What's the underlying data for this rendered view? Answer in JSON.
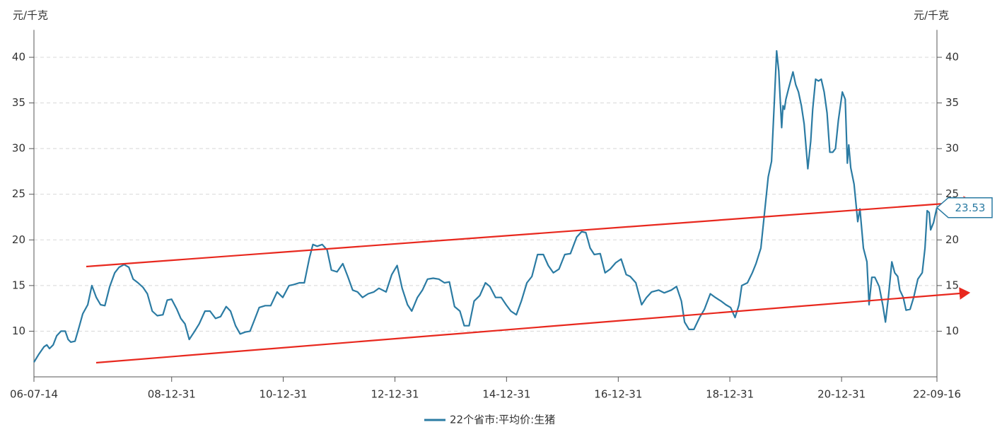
{
  "chart_data": {
    "type": "line",
    "y_label": "元/千克",
    "y2_label": "元/千克",
    "x": [
      "06-07-14",
      "06-08-16",
      "06-09-18",
      "06-10-06",
      "06-10-24",
      "06-11-17",
      "06-12-10",
      "07-01-07",
      "07-02-04",
      "07-02-23",
      "07-03-12",
      "07-04-09",
      "07-05-06",
      "07-05-29",
      "07-07-01",
      "07-07-28",
      "07-08-26",
      "07-09-23",
      "07-10-21",
      "07-11-22",
      "07-12-25",
      "08-01-22",
      "08-02-24",
      "08-03-26",
      "08-04-23",
      "08-05-25",
      "08-06-27",
      "08-07-25",
      "08-08-26",
      "08-09-28",
      "08-11-04",
      "08-12-02",
      "08-12-31",
      "09-02-03",
      "09-03-01",
      "09-03-28",
      "09-04-25",
      "09-05-27",
      "09-06-29",
      "09-08-06",
      "09-09-08",
      "09-10-14",
      "09-11-16",
      "09-12-23",
      "10-01-20",
      "10-02-22",
      "10-03-24",
      "10-04-26",
      "10-05-28",
      "10-06-25",
      "10-07-27",
      "10-09-04",
      "10-10-10",
      "10-11-21",
      "10-12-28",
      "11-02-07",
      "11-03-09",
      "11-04-16",
      "11-05-18",
      "11-06-20",
      "11-07-13",
      "11-08-10",
      "11-09-12",
      "11-10-14",
      "11-11-11",
      "11-12-18",
      "12-01-25",
      "12-02-26",
      "12-03-29",
      "12-04-30",
      "12-06-02",
      "12-07-09",
      "12-08-15",
      "12-09-17",
      "12-11-03",
      "12-12-10",
      "13-01-14",
      "13-02-16",
      "13-03-23",
      "13-04-20",
      "13-05-27",
      "13-06-29",
      "13-08-01",
      "13-09-07",
      "13-10-14",
      "13-11-20",
      "13-12-22",
      "14-01-25",
      "14-03-01",
      "14-03-29",
      "14-04-30",
      "14-06-02",
      "14-07-09",
      "14-08-15",
      "14-09-13",
      "14-10-20",
      "14-11-26",
      "14-12-28",
      "15-01-28",
      "15-03-05",
      "15-04-07",
      "15-05-13",
      "15-06-15",
      "15-07-22",
      "15-08-29",
      "15-09-30",
      "15-11-02",
      "15-12-09",
      "16-01-16",
      "16-02-22",
      "16-04-03",
      "16-05-05",
      "16-06-02",
      "16-06-30",
      "16-07-27",
      "16-09-04",
      "16-10-06",
      "16-11-08",
      "16-12-14",
      "17-01-19",
      "17-02-21",
      "17-03-19",
      "17-04-25",
      "17-06-02",
      "17-07-04",
      "17-08-06",
      "17-09-21",
      "17-10-28",
      "17-12-13",
      "18-01-16",
      "18-02-17",
      "18-03-10",
      "18-04-08",
      "18-05-10",
      "18-06-16",
      "18-07-18",
      "18-08-25",
      "18-09-27",
      "18-11-03",
      "18-12-05",
      "19-01-05",
      "19-02-03",
      "19-03-01",
      "19-03-19",
      "19-04-25",
      "19-05-27",
      "19-06-20",
      "19-07-22",
      "19-08-15",
      "19-09-08",
      "19-09-30",
      "19-10-19",
      "19-11-02",
      "19-11-16",
      "19-12-05",
      "19-12-14",
      "19-12-23",
      "20-01-02",
      "20-01-20",
      "20-02-17",
      "20-03-06",
      "20-03-24",
      "20-04-12",
      "20-04-30",
      "20-05-24",
      "20-06-12",
      "20-06-25",
      "20-07-14",
      "20-08-02",
      "20-08-20",
      "20-09-08",
      "20-09-27",
      "20-10-15",
      "20-11-03",
      "20-11-21",
      "20-12-10",
      "21-01-05",
      "21-01-24",
      "21-02-07",
      "21-02-16",
      "21-03-01",
      "21-03-23",
      "21-04-16",
      "21-04-30",
      "21-05-23",
      "21-06-15",
      "21-06-29",
      "21-07-17",
      "21-08-06",
      "21-09-03",
      "21-09-26",
      "21-10-14",
      "21-11-02",
      "21-11-25",
      "21-12-14",
      "22-01-02",
      "22-01-16",
      "22-02-08",
      "22-02-26",
      "22-03-24",
      "22-04-17",
      "22-05-14",
      "22-06-12",
      "22-06-30",
      "22-07-14",
      "22-07-27",
      "22-08-06",
      "22-08-25",
      "22-09-08",
      "22-09-16"
    ],
    "series": [
      {
        "name": "22个省市:平均价:生猪",
        "color": "#2b7ba3",
        "values": [
          6.6,
          7.5,
          8.3,
          8.5,
          8.1,
          8.5,
          9.5,
          10.0,
          10.0,
          9.1,
          8.8,
          8.9,
          10.5,
          11.9,
          12.9,
          15.0,
          13.7,
          12.9,
          12.8,
          14.9,
          16.4,
          17.0,
          17.3,
          17.0,
          15.7,
          15.3,
          14.8,
          14.1,
          12.2,
          11.7,
          11.8,
          13.4,
          13.5,
          12.4,
          11.4,
          10.8,
          9.1,
          9.9,
          10.8,
          12.2,
          12.2,
          11.4,
          11.6,
          12.7,
          12.2,
          10.6,
          9.7,
          9.9,
          10.0,
          11.2,
          12.6,
          12.8,
          12.8,
          14.3,
          13.7,
          15.0,
          15.1,
          15.3,
          15.3,
          18.0,
          19.5,
          19.3,
          19.5,
          18.9,
          16.7,
          16.5,
          17.4,
          16.0,
          14.5,
          14.3,
          13.7,
          14.1,
          14.3,
          14.7,
          14.3,
          16.2,
          17.2,
          14.7,
          12.9,
          12.2,
          13.7,
          14.5,
          15.7,
          15.8,
          15.7,
          15.3,
          15.4,
          12.7,
          12.2,
          10.6,
          10.6,
          13.3,
          13.9,
          15.3,
          14.9,
          13.7,
          13.7,
          12.9,
          12.2,
          11.8,
          13.3,
          15.3,
          16.0,
          18.4,
          18.4,
          17.2,
          16.4,
          16.8,
          18.4,
          18.5,
          20.3,
          20.9,
          20.8,
          19.1,
          18.4,
          18.5,
          16.4,
          16.8,
          17.5,
          17.9,
          16.2,
          16.0,
          15.3,
          12.9,
          13.7,
          14.3,
          14.5,
          14.2,
          14.5,
          14.9,
          13.3,
          11.0,
          10.2,
          10.2,
          11.5,
          12.4,
          14.1,
          13.7,
          13.3,
          12.9,
          12.6,
          11.5,
          12.9,
          15.0,
          15.3,
          16.4,
          17.4,
          19.1,
          23.0,
          26.9,
          28.6,
          35.4,
          40.7,
          38.5,
          32.3,
          34.7,
          34.3,
          35.4,
          36.6,
          38.4,
          37.0,
          36.2,
          34.7,
          32.7,
          27.8,
          30.8,
          34.3,
          37.6,
          37.4,
          37.6,
          36.2,
          33.9,
          29.6,
          29.6,
          30.0,
          33.1,
          36.2,
          35.4,
          28.4,
          30.4,
          27.9,
          26.1,
          22.0,
          23.4,
          19.1,
          17.6,
          12.9,
          15.9,
          15.9,
          14.9,
          12.9,
          11.0,
          13.7,
          17.6,
          16.4,
          16.0,
          14.5,
          13.7,
          12.3,
          12.4,
          13.7,
          15.7,
          16.4,
          19.1,
          23.2,
          23.0,
          21.1,
          21.9,
          23.0,
          23.53
        ]
      }
    ],
    "xlim": [
      "06-07-14",
      "22-09-16"
    ],
    "xticks": [
      "06-07-14",
      "08-12-31",
      "10-12-31",
      "12-12-31",
      "14-12-31",
      "16-12-31",
      "18-12-31",
      "20-12-31",
      "22-09-16"
    ],
    "ylim": [
      5,
      43
    ],
    "yticks": [
      10,
      15,
      20,
      25,
      30,
      35,
      40
    ],
    "y2lim": [
      5,
      43
    ],
    "y2ticks": [
      10,
      15,
      20,
      25,
      30,
      35,
      40
    ],
    "grid": true,
    "legend": "bottom"
  }
}
